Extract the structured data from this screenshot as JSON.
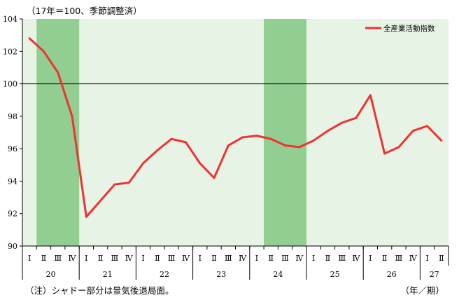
{
  "chart_data": {
    "type": "line",
    "unit_note": "（17年＝100、季節調整済）",
    "footnote": "（注）シャドー部分は景気後退局面。",
    "x_unit": "（年／期）",
    "ylim": [
      90,
      104
    ],
    "yticks": [
      "90",
      "92",
      "94",
      "96",
      "98",
      "100",
      "102",
      "104"
    ],
    "reference_line": 100,
    "quarter_labels": [
      "Ⅰ",
      "Ⅱ",
      "Ⅲ",
      "Ⅳ",
      "Ⅰ",
      "Ⅱ",
      "Ⅲ",
      "Ⅳ",
      "Ⅰ",
      "Ⅱ",
      "Ⅲ",
      "Ⅳ",
      "Ⅰ",
      "Ⅱ",
      "Ⅲ",
      "Ⅳ",
      "Ⅰ",
      "Ⅱ",
      "Ⅲ",
      "Ⅳ",
      "Ⅰ",
      "Ⅱ",
      "Ⅲ",
      "Ⅳ",
      "Ⅰ",
      "Ⅱ",
      "Ⅲ",
      "Ⅳ",
      "Ⅰ",
      "Ⅱ"
    ],
    "year_labels": [
      "20",
      "21",
      "22",
      "23",
      "24",
      "25",
      "26",
      "27"
    ],
    "year_start_index": [
      0,
      4,
      8,
      12,
      16,
      20,
      24,
      28
    ],
    "shaded_recessions": [
      [
        0,
        3
      ],
      [
        17,
        19
      ]
    ],
    "series": [
      {
        "name": "全産業活動指数",
        "color": "#f03232",
        "values": [
          102.8,
          102.0,
          100.7,
          98.0,
          91.8,
          92.8,
          93.8,
          93.9,
          95.1,
          95.9,
          96.6,
          96.4,
          95.1,
          94.2,
          96.2,
          96.7,
          96.8,
          96.6,
          96.2,
          96.1,
          96.5,
          97.1,
          97.6,
          97.9,
          99.3,
          95.7,
          96.1,
          97.1,
          97.4,
          96.5
        ]
      }
    ],
    "colors": {
      "plot_bg": "#e6f3e5",
      "shade": "#92cd92",
      "line": "#f03232"
    }
  }
}
